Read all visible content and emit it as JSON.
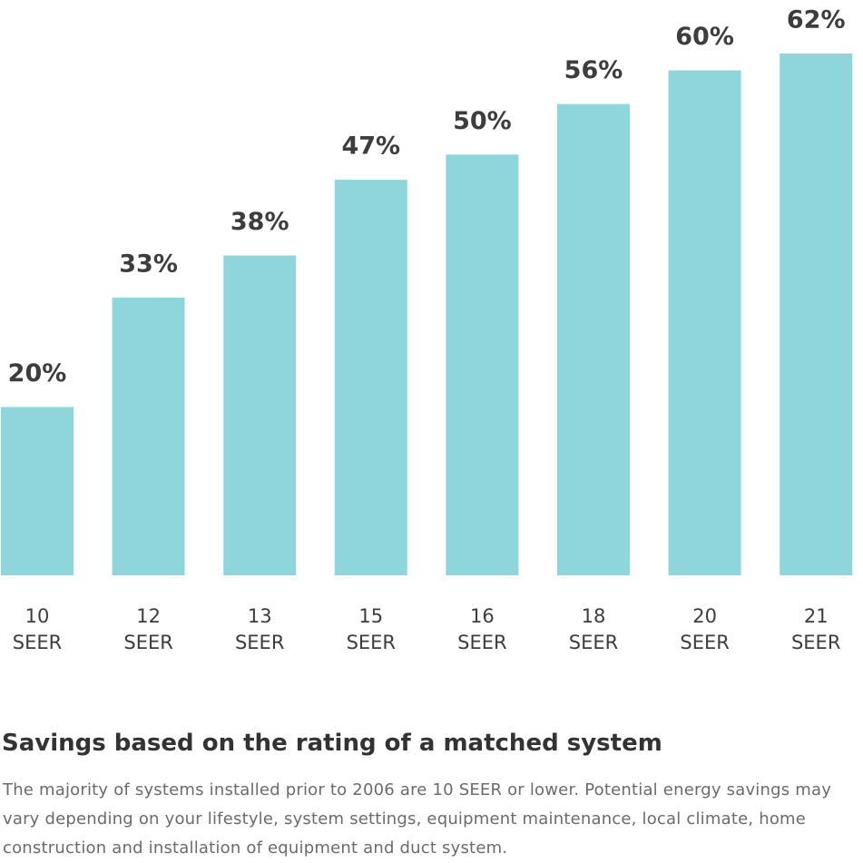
{
  "chart_data": {
    "type": "bar",
    "categories": [
      "10 SEER",
      "12 SEER",
      "13 SEER",
      "15 SEER",
      "16 SEER",
      "18 SEER",
      "20 SEER",
      "21 SEER"
    ],
    "category_lines": [
      [
        "10",
        "SEER"
      ],
      [
        "12",
        "SEER"
      ],
      [
        "13",
        "SEER"
      ],
      [
        "15",
        "SEER"
      ],
      [
        "16",
        "SEER"
      ],
      [
        "18",
        "SEER"
      ],
      [
        "20",
        "SEER"
      ],
      [
        "21",
        "SEER"
      ]
    ],
    "values": [
      20,
      33,
      38,
      47,
      50,
      56,
      60,
      62
    ],
    "value_labels": [
      "20%",
      "33%",
      "38%",
      "47%",
      "50%",
      "56%",
      "60%",
      "62%"
    ],
    "unit": "%",
    "ylim": [
      0,
      62
    ],
    "grid": false,
    "legend": "none",
    "title": "",
    "xlabel": "",
    "ylabel": "",
    "bar_color": "#8fd6dc",
    "text_color": "#3d3d3d"
  },
  "caption": {
    "title": "Savings based on the rating of a matched system",
    "body": "The majority of systems installed prior to 2006 are 10 SEER or lower. Potential energy savings may vary depending on your lifestyle, system settings, equipment maintenance, local climate, home construction and installation of equipment and duct system."
  }
}
